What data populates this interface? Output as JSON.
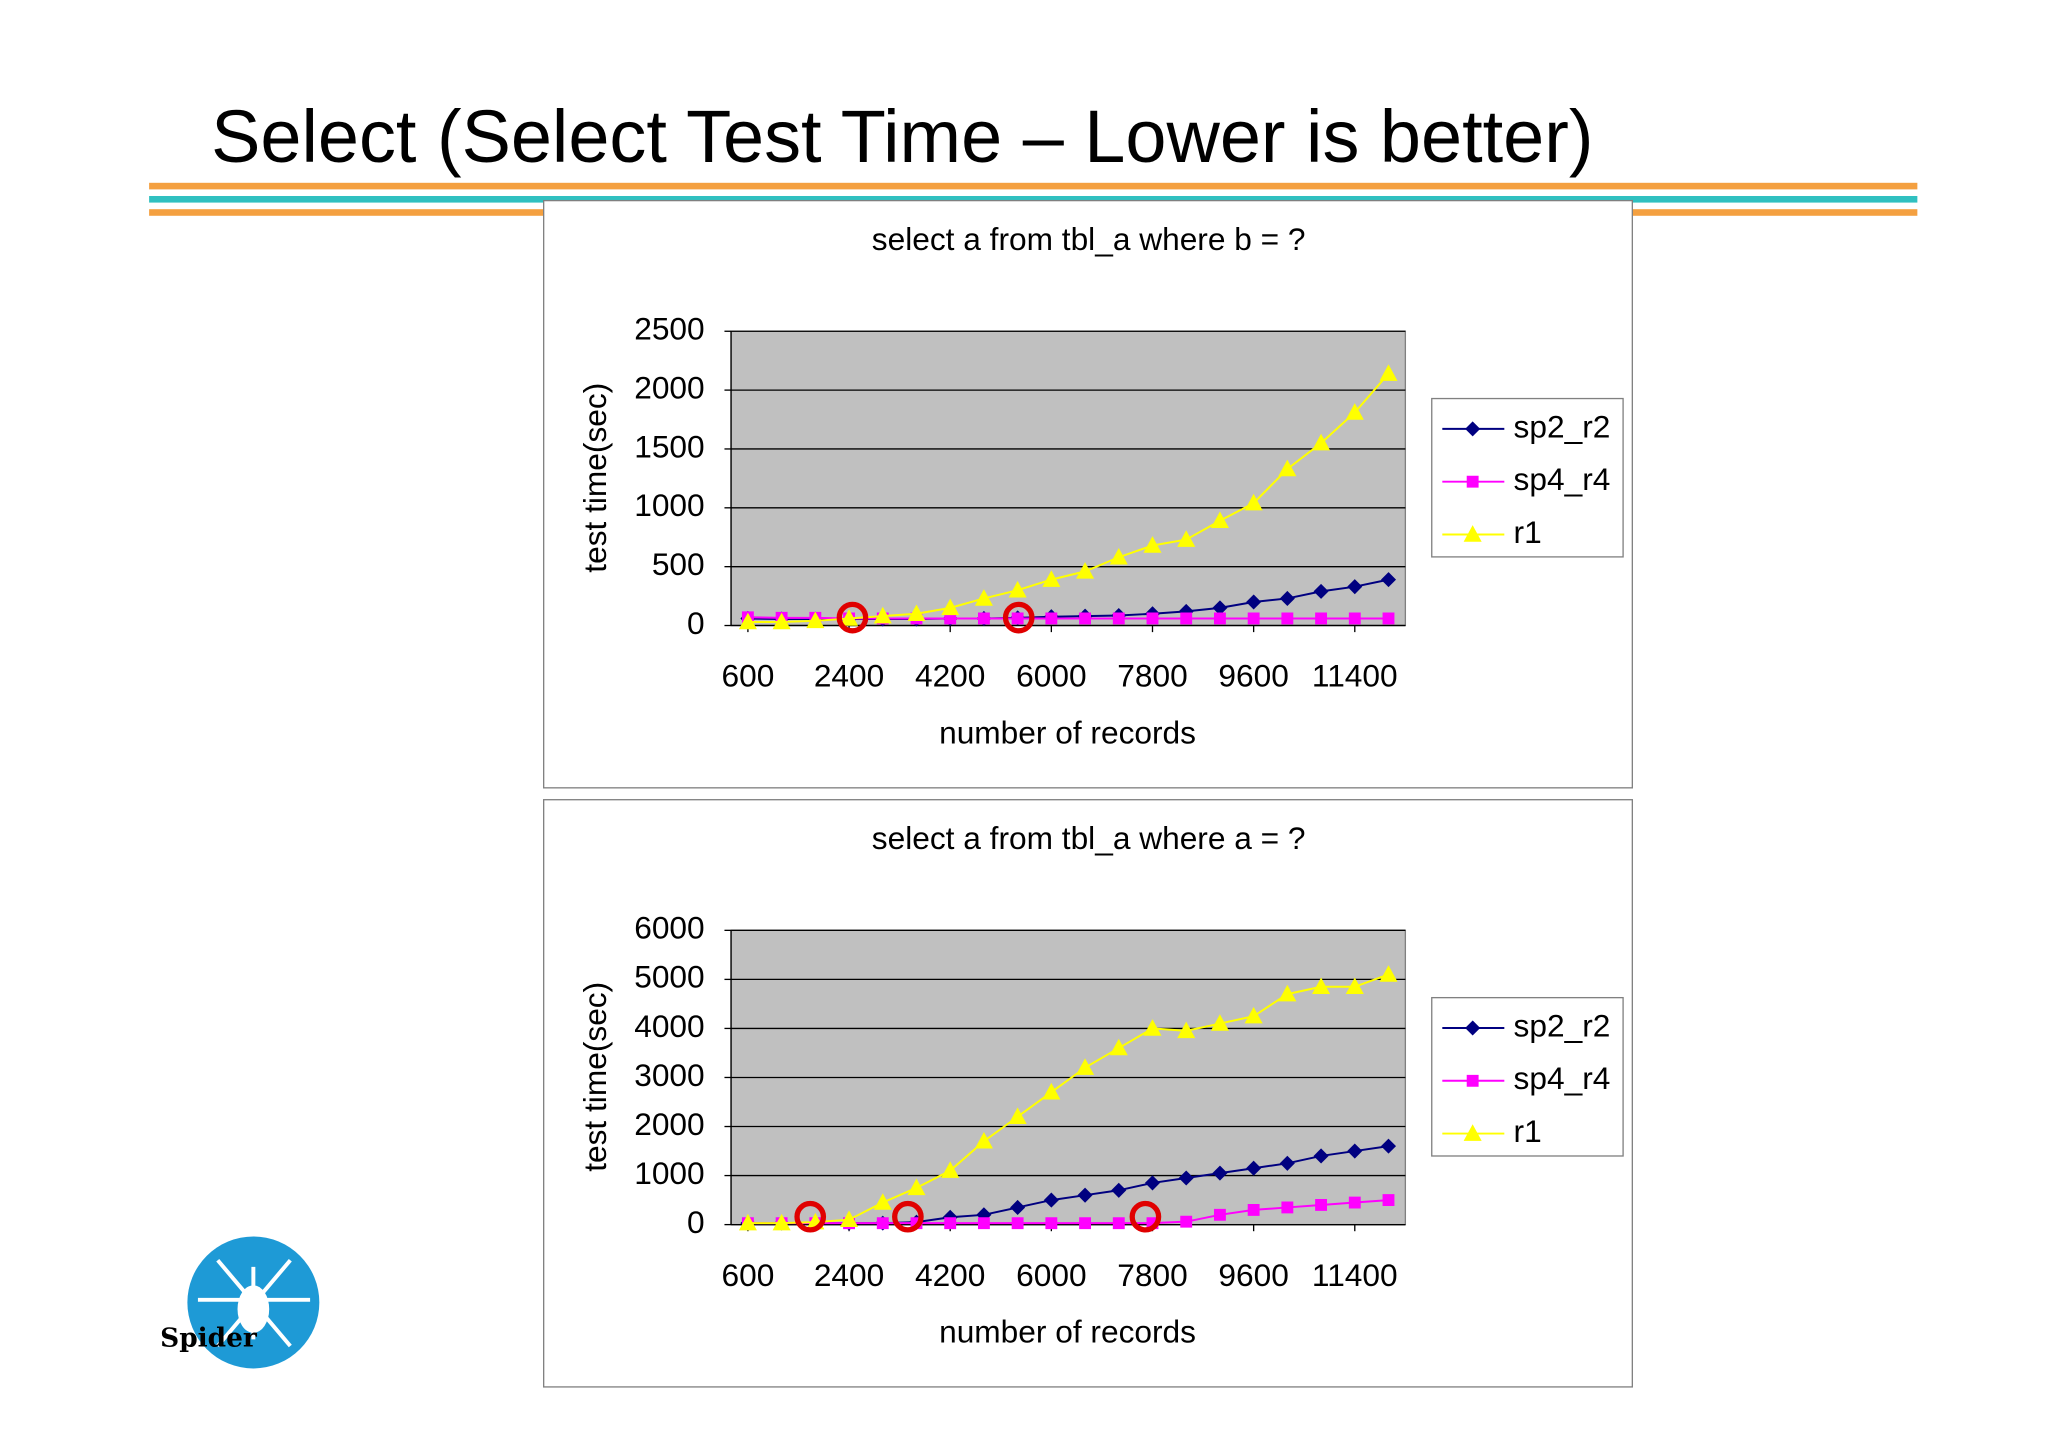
{
  "title": "Select (Select Test Time – Lower is better)",
  "logo": {
    "text": "Spider"
  },
  "chart_data": [
    {
      "type": "line",
      "title": "select a from tbl_a where b = ?",
      "x_label": "number of records",
      "y_label": "test time(sec)",
      "x": [
        600,
        1200,
        1800,
        2400,
        3000,
        3600,
        4200,
        4800,
        5400,
        6000,
        6600,
        7200,
        7800,
        8400,
        9000,
        9600,
        10200,
        10800,
        11400,
        12000
      ],
      "xlim": [
        300,
        12300
      ],
      "xticks": [
        600,
        2400,
        4200,
        6000,
        7800,
        9600,
        11400
      ],
      "ylim": [
        0,
        2500
      ],
      "yticks": [
        0,
        500,
        1000,
        1500,
        2000,
        2500
      ],
      "grid": true,
      "legend": "right",
      "series": [
        {
          "name": "sp2_r2",
          "color": "#000080",
          "marker": "diamond",
          "values": [
            60,
            55,
            55,
            55,
            55,
            55,
            60,
            60,
            65,
            75,
            80,
            85,
            100,
            120,
            150,
            200,
            230,
            290,
            330,
            390
          ]
        },
        {
          "name": "sp4_r4",
          "color": "#ff00ff",
          "marker": "square",
          "values": [
            70,
            65,
            65,
            60,
            60,
            60,
            60,
            60,
            60,
            60,
            60,
            60,
            60,
            60,
            60,
            60,
            60,
            60,
            60,
            60
          ]
        },
        {
          "name": "r1",
          "color": "#ffff00",
          "marker": "triangle",
          "values": [
            30,
            30,
            40,
            60,
            80,
            100,
            150,
            230,
            300,
            390,
            460,
            580,
            680,
            730,
            890,
            1040,
            1330,
            1550,
            1810,
            2140
          ]
        }
      ]
    },
    {
      "type": "line",
      "title": "select a from tbl_a where a = ?",
      "x_label": "number of records",
      "y_label": "test time(sec)",
      "x": [
        600,
        1200,
        1800,
        2400,
        3000,
        3600,
        4200,
        4800,
        5400,
        6000,
        6600,
        7200,
        7800,
        8400,
        9000,
        9600,
        10200,
        10800,
        11400,
        12000
      ],
      "xlim": [
        300,
        12300
      ],
      "xticks": [
        600,
        2400,
        4200,
        6000,
        7800,
        9600,
        11400
      ],
      "ylim": [
        0,
        6000
      ],
      "yticks": [
        0,
        1000,
        2000,
        3000,
        4000,
        5000,
        6000
      ],
      "grid": true,
      "legend": "right",
      "series": [
        {
          "name": "sp2_r2",
          "color": "#000080",
          "marker": "diamond",
          "values": [
            30,
            30,
            30,
            30,
            30,
            50,
            150,
            200,
            350,
            500,
            600,
            700,
            850,
            950,
            1050,
            1150,
            1250,
            1400,
            1500,
            1600
          ]
        },
        {
          "name": "sp4_r4",
          "color": "#ff00ff",
          "marker": "square",
          "values": [
            30,
            30,
            30,
            30,
            30,
            30,
            30,
            30,
            30,
            30,
            30,
            30,
            30,
            60,
            200,
            300,
            350,
            400,
            450,
            500
          ]
        },
        {
          "name": "r1",
          "color": "#ffff00",
          "marker": "triangle",
          "values": [
            30,
            30,
            50,
            100,
            450,
            750,
            1100,
            1700,
            2200,
            2700,
            3200,
            3600,
            4000,
            3950,
            4100,
            4250,
            4700,
            4850,
            4850,
            5100
          ]
        }
      ]
    }
  ]
}
